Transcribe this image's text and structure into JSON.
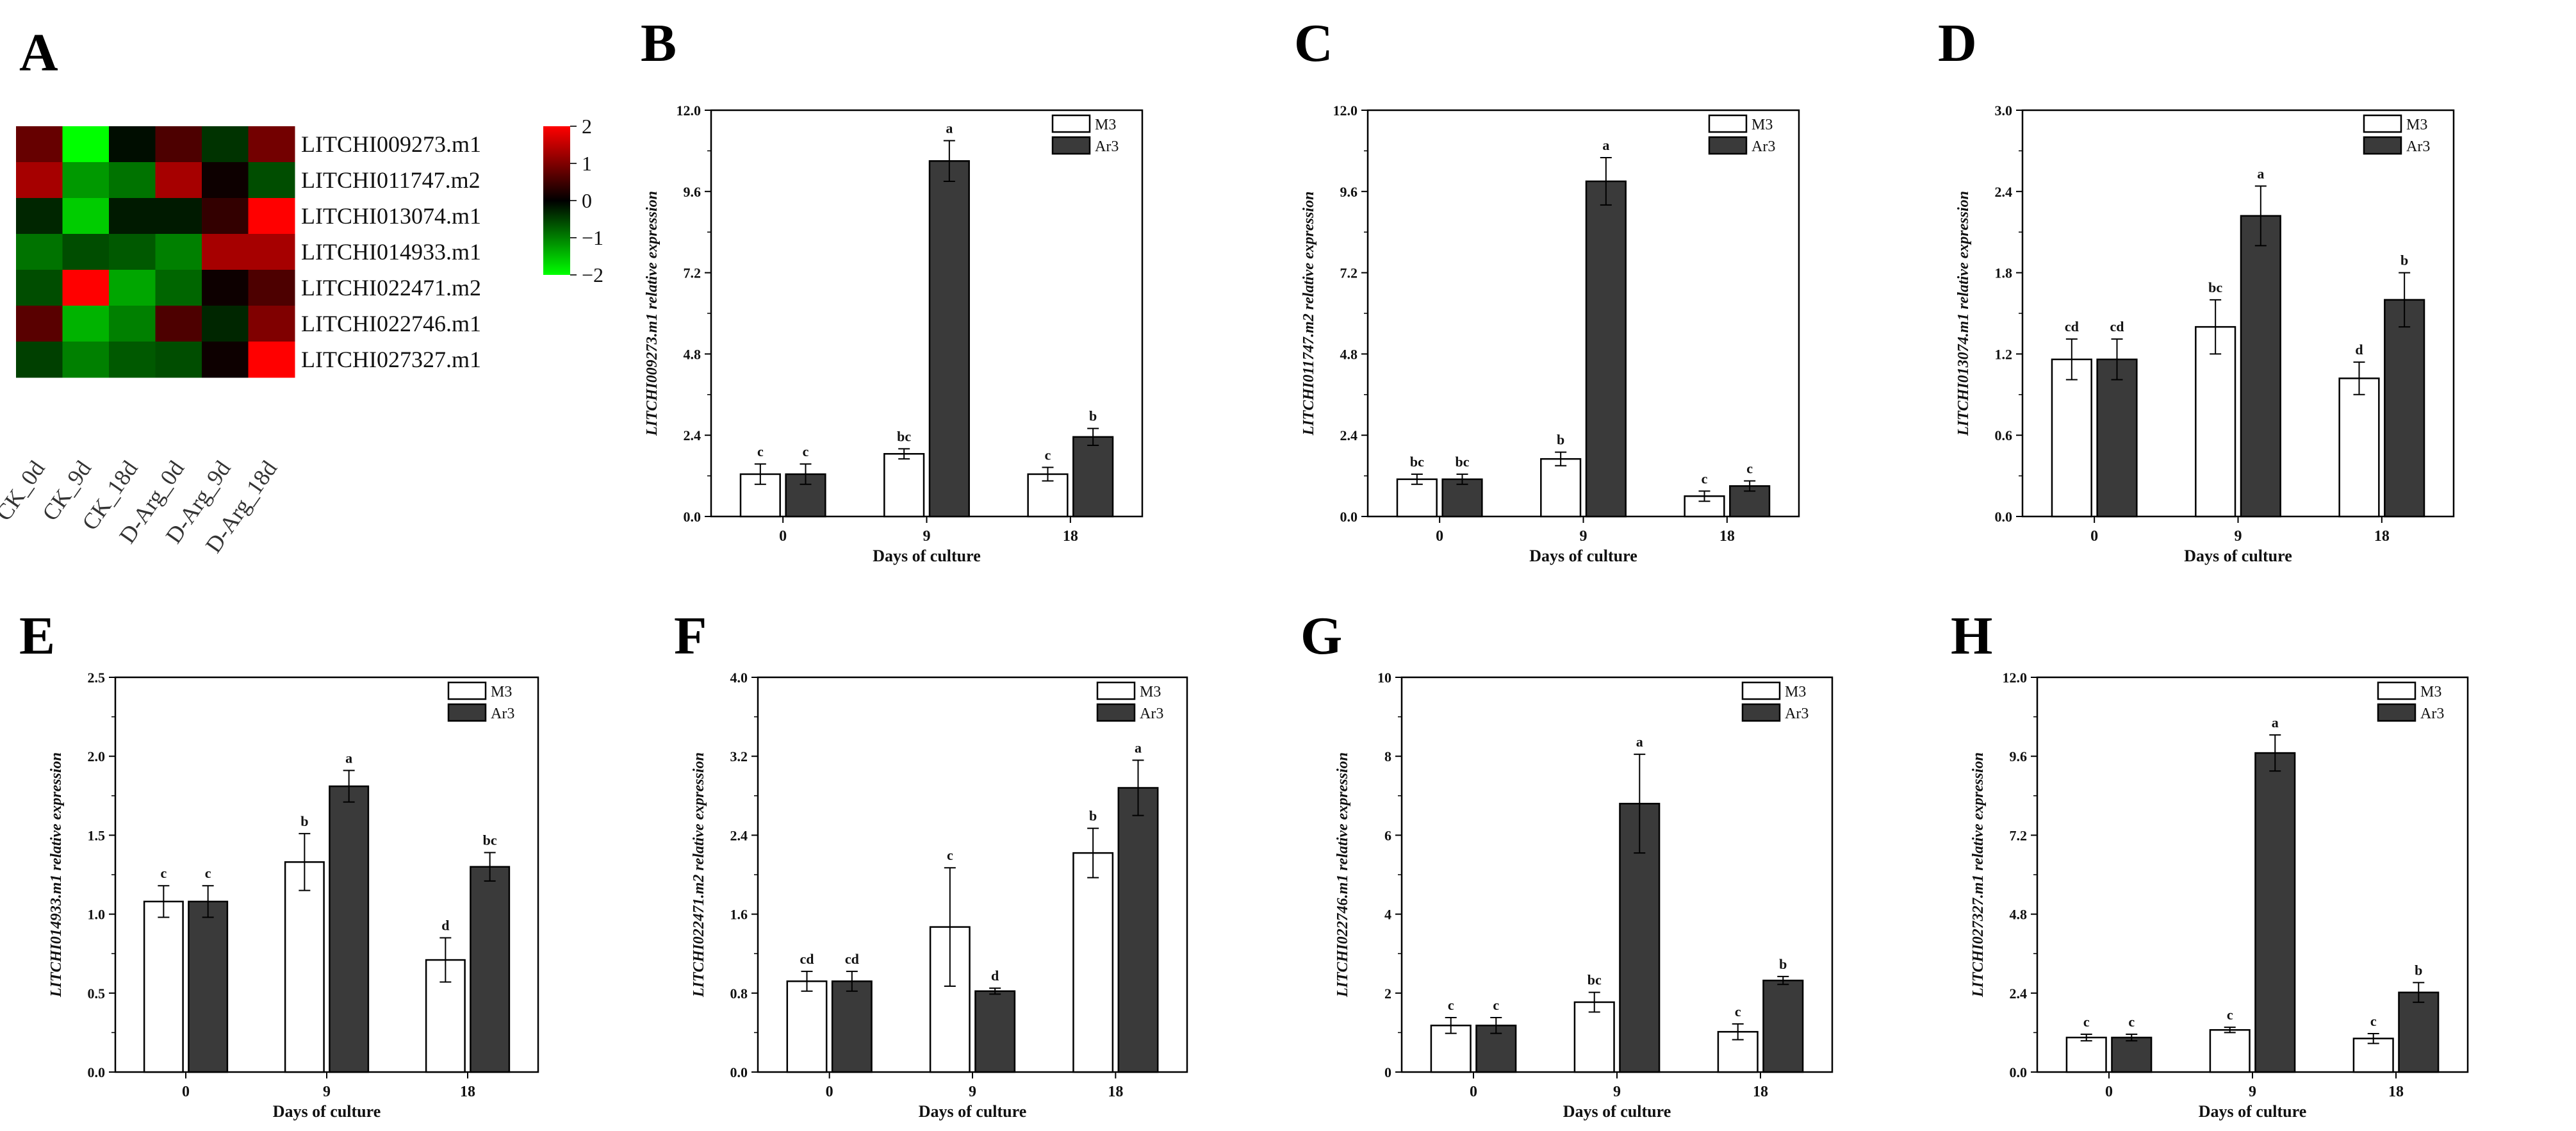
{
  "chart_data": [
    {
      "panel": "A",
      "type": "heatmap",
      "rows": [
        "LITCHI009273.m1",
        "LITCHI011747.m2",
        "LITCHI013074.m1",
        "LITCHI014933.m1",
        "LITCHI022471.m2",
        "LITCHI022746.m1",
        "LITCHI027327.m1"
      ],
      "columns": [
        "CK_0d",
        "CK_9d",
        "CK_18d",
        "D-Arg_0d",
        "D-Arg_9d",
        "D-Arg_18d"
      ],
      "values": [
        [
          0.8,
          -2.0,
          -0.1,
          0.6,
          -0.4,
          0.9
        ],
        [
          1.3,
          -1.2,
          -0.9,
          1.3,
          0.1,
          -0.6
        ],
        [
          -0.3,
          -1.6,
          -0.2,
          -0.2,
          0.4,
          2.0
        ],
        [
          -0.9,
          -0.6,
          -0.7,
          -1.0,
          1.3,
          1.3
        ],
        [
          -0.6,
          2.0,
          -1.3,
          -0.8,
          0.1,
          0.6
        ],
        [
          0.7,
          -1.4,
          -1.0,
          0.6,
          -0.3,
          1.0
        ],
        [
          -0.5,
          -1.0,
          -0.7,
          -0.6,
          0.1,
          2.0
        ]
      ],
      "colorbar": {
        "min": -2,
        "max": 2,
        "ticks": [
          "2",
          "1",
          "0",
          "−1",
          "−2"
        ],
        "low_color": "#00ff00",
        "mid_color": "#000000",
        "high_color": "#ff0000"
      }
    },
    {
      "panel": "B",
      "type": "bar",
      "ylabel": "LITCHI009273.m1 relative expression",
      "xlabel": "Days of culture",
      "categories": [
        "0",
        "9",
        "18"
      ],
      "ylim": [
        0,
        12
      ],
      "yticks": [
        "0.0",
        "2.4",
        "4.8",
        "7.2",
        "9.6",
        "12.0"
      ],
      "legend": [
        "M3",
        "Ar3"
      ],
      "series": [
        {
          "name": "M3",
          "values": [
            1.25,
            1.85,
            1.25
          ],
          "errors": [
            0.3,
            0.15,
            0.2
          ],
          "labels": [
            "c",
            "bc",
            "c"
          ]
        },
        {
          "name": "Ar3",
          "values": [
            1.25,
            10.5,
            2.35
          ],
          "errors": [
            0.3,
            0.6,
            0.25
          ],
          "labels": [
            "c",
            "a",
            "b"
          ]
        }
      ]
    },
    {
      "panel": "C",
      "type": "bar",
      "ylabel": "LITCHI011747.m2 relative expression",
      "xlabel": "Days of culture",
      "categories": [
        "0",
        "9",
        "18"
      ],
      "ylim": [
        0,
        12
      ],
      "yticks": [
        "0.0",
        "2.4",
        "4.8",
        "7.2",
        "9.6",
        "12.0"
      ],
      "legend": [
        "M3",
        "Ar3"
      ],
      "series": [
        {
          "name": "M3",
          "values": [
            1.1,
            1.7,
            0.6
          ],
          "errors": [
            0.15,
            0.2,
            0.15
          ],
          "labels": [
            "bc",
            "b",
            "c"
          ]
        },
        {
          "name": "Ar3",
          "values": [
            1.1,
            9.9,
            0.9
          ],
          "errors": [
            0.15,
            0.7,
            0.15
          ],
          "labels": [
            "bc",
            "a",
            "c"
          ]
        }
      ]
    },
    {
      "panel": "D",
      "type": "bar",
      "ylabel": "LITCHI013074.m1 relative expression",
      "xlabel": "Days of culture",
      "categories": [
        "0",
        "9",
        "18"
      ],
      "ylim": [
        0,
        3
      ],
      "yticks": [
        "0.0",
        "0.6",
        "1.2",
        "1.8",
        "2.4",
        "3.0"
      ],
      "legend": [
        "M3",
        "Ar3"
      ],
      "series": [
        {
          "name": "M3",
          "values": [
            1.16,
            1.4,
            1.02
          ],
          "errors": [
            0.15,
            0.2,
            0.12
          ],
          "labels": [
            "cd",
            "bc",
            "d"
          ]
        },
        {
          "name": "Ar3",
          "values": [
            1.16,
            2.22,
            1.6
          ],
          "errors": [
            0.15,
            0.22,
            0.2
          ],
          "labels": [
            "cd",
            "a",
            "b"
          ]
        }
      ]
    },
    {
      "panel": "E",
      "type": "bar",
      "ylabel": "LITCHI014933.m1 relative expression",
      "xlabel": "Days of culture",
      "categories": [
        "0",
        "9",
        "18"
      ],
      "ylim": [
        0,
        2.5
      ],
      "yticks": [
        "0.0",
        "0.5",
        "1.0",
        "1.5",
        "2.0",
        "2.5"
      ],
      "legend": [
        "M3",
        "Ar3"
      ],
      "series": [
        {
          "name": "M3",
          "values": [
            1.08,
            1.33,
            0.71
          ],
          "errors": [
            0.1,
            0.18,
            0.14
          ],
          "labels": [
            "c",
            "b",
            "d"
          ]
        },
        {
          "name": "Ar3",
          "values": [
            1.08,
            1.81,
            1.3
          ],
          "errors": [
            0.1,
            0.1,
            0.09
          ],
          "labels": [
            "c",
            "a",
            "bc"
          ]
        }
      ]
    },
    {
      "panel": "F",
      "type": "bar",
      "ylabel": "LITCHI022471.m2 relative expression",
      "xlabel": "Days of culture",
      "categories": [
        "0",
        "9",
        "18"
      ],
      "ylim": [
        0,
        4
      ],
      "yticks": [
        "0.0",
        "0.8",
        "1.6",
        "2.4",
        "3.2",
        "4.0"
      ],
      "legend": [
        "M3",
        "Ar3"
      ],
      "series": [
        {
          "name": "M3",
          "values": [
            0.92,
            1.47,
            2.22
          ],
          "errors": [
            0.1,
            0.6,
            0.25
          ],
          "labels": [
            "cd",
            "c",
            "b"
          ]
        },
        {
          "name": "Ar3",
          "values": [
            0.92,
            0.82,
            2.88
          ],
          "errors": [
            0.1,
            0.03,
            0.28
          ],
          "labels": [
            "cd",
            "d",
            "a"
          ]
        }
      ]
    },
    {
      "panel": "G",
      "type": "bar",
      "ylabel": "LITCHI022746.m1 relative expression",
      "xlabel": "Days of culture",
      "categories": [
        "0",
        "9",
        "18"
      ],
      "ylim": [
        0,
        10
      ],
      "yticks": [
        "0",
        "2",
        "4",
        "6",
        "8",
        "10"
      ],
      "legend": [
        "M3",
        "Ar3"
      ],
      "series": [
        {
          "name": "M3",
          "values": [
            1.18,
            1.77,
            1.02
          ],
          "errors": [
            0.2,
            0.25,
            0.2
          ],
          "labels": [
            "c",
            "bc",
            "c"
          ]
        },
        {
          "name": "Ar3",
          "values": [
            1.18,
            6.8,
            2.32
          ],
          "errors": [
            0.2,
            1.25,
            0.1
          ],
          "labels": [
            "c",
            "a",
            "b"
          ]
        }
      ]
    },
    {
      "panel": "H",
      "type": "bar",
      "ylabel": "LITCHI027327.m1 relative expression",
      "xlabel": "Days of culture",
      "categories": [
        "0",
        "9",
        "18"
      ],
      "ylim": [
        0,
        12
      ],
      "yticks": [
        "0.0",
        "2.4",
        "4.8",
        "7.2",
        "9.6",
        "12.0"
      ],
      "legend": [
        "M3",
        "Ar3"
      ],
      "series": [
        {
          "name": "M3",
          "values": [
            1.05,
            1.28,
            1.02
          ],
          "errors": [
            0.1,
            0.08,
            0.15
          ],
          "labels": [
            "c",
            "c",
            "c"
          ]
        },
        {
          "name": "Ar3",
          "values": [
            1.05,
            9.7,
            2.42
          ],
          "errors": [
            0.1,
            0.55,
            0.3
          ],
          "labels": [
            "c",
            "a",
            "b"
          ]
        }
      ]
    }
  ],
  "colors": {
    "bar_m3": "#ffffff",
    "bar_ar3": "#3a3a3a",
    "stroke": "#000000"
  }
}
